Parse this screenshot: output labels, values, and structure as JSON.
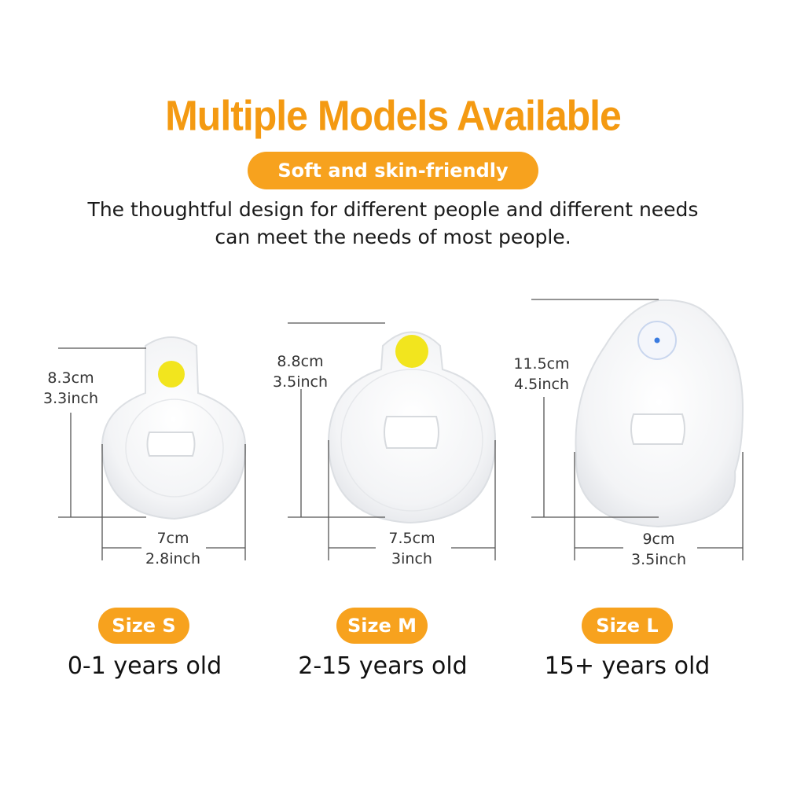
{
  "title": "Multiple Models Available",
  "subtitle": "Soft and skin-friendly",
  "description": {
    "line1": "The thoughtful design for different people and different needs",
    "line2": "can meet the needs of most people."
  },
  "models": [
    {
      "size_label": "Size S",
      "age": "0-1 years old",
      "height_cm": "8.3cm",
      "height_in": "3.3inch",
      "width_cm": "7cm",
      "width_in": "2.8inch",
      "dot_color": "#f2e51e"
    },
    {
      "size_label": "Size M",
      "age": "2-15 years old",
      "height_cm": "8.8cm",
      "height_in": "3.5inch",
      "width_cm": "7.5cm",
      "width_in": "3inch",
      "dot_color": "#f2e51e"
    },
    {
      "size_label": "Size L",
      "age": "15+ years old",
      "height_cm": "11.5cm",
      "height_in": "4.5inch",
      "width_cm": "9cm",
      "width_in": "3.5inch",
      "dot_color": "#3a7be0"
    }
  ],
  "colors": {
    "accent": "#f49a12",
    "pill": "#f7a21e"
  }
}
